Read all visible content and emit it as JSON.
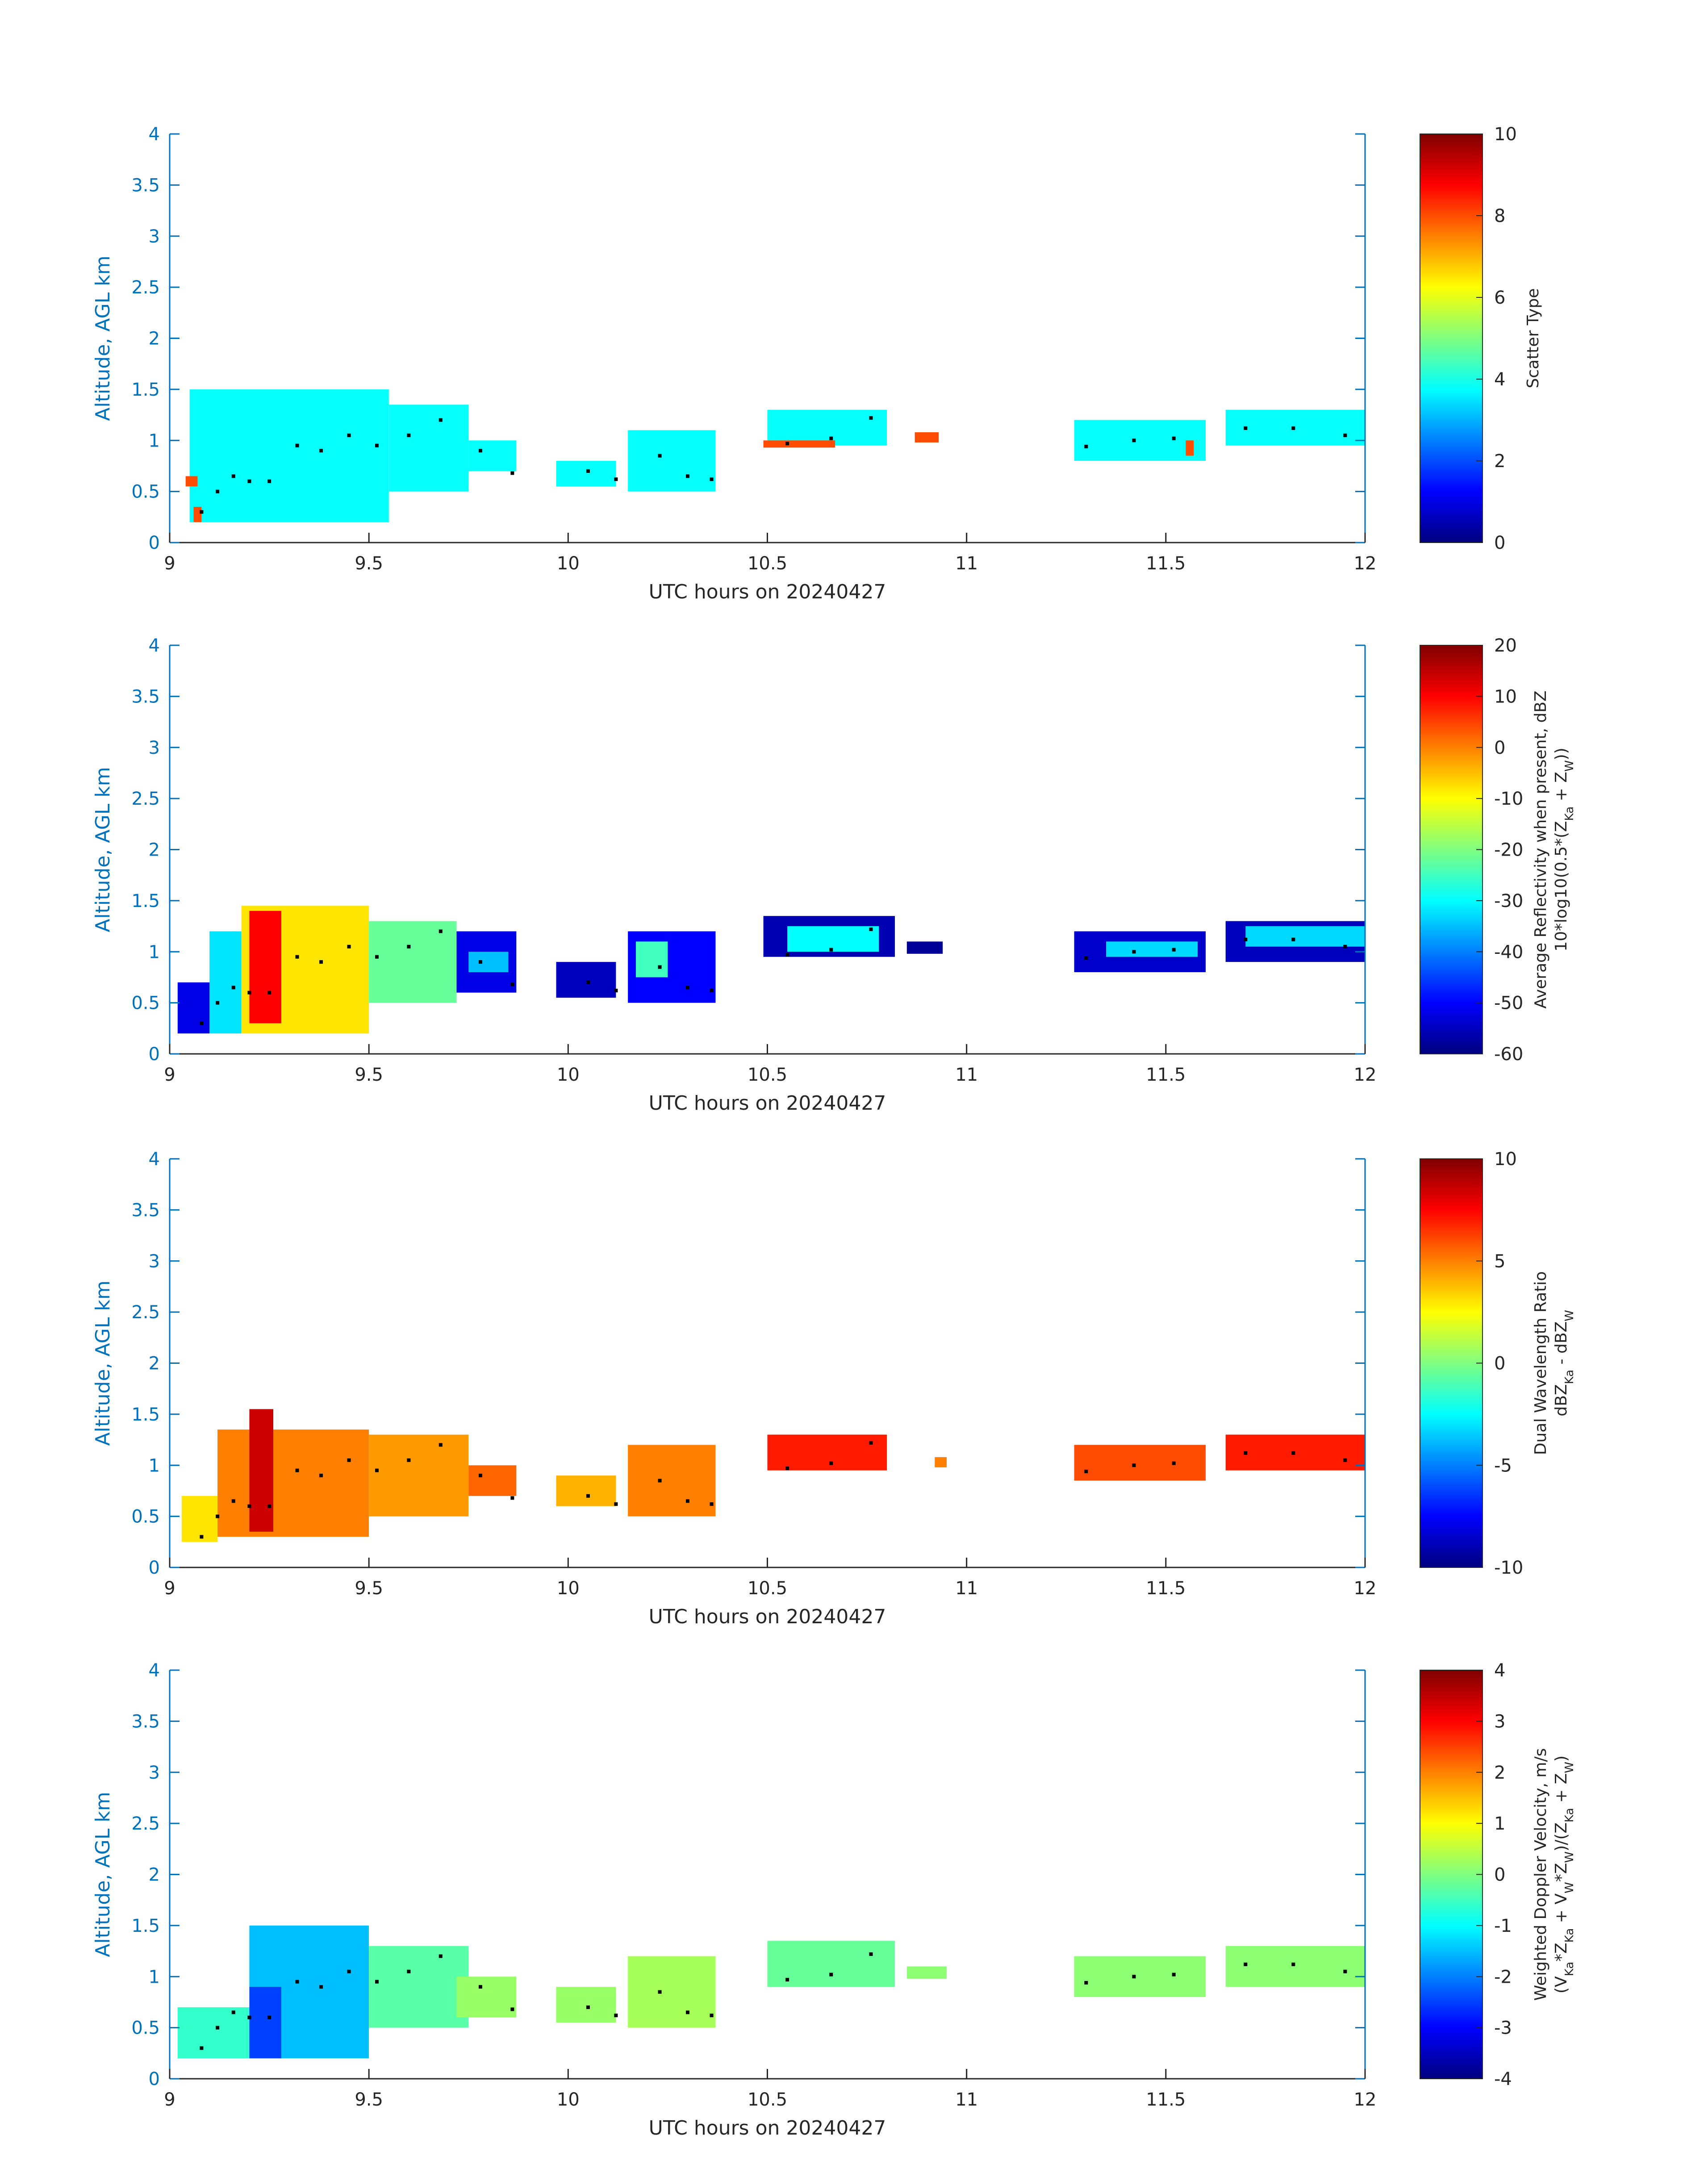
{
  "chart_data": [
    {
      "type": "heatmap",
      "title": "",
      "xlabel": "UTC hours on 20240427",
      "ylabel": "Altitude, AGL km",
      "xlim": [
        9,
        12
      ],
      "ylim": [
        0,
        4
      ],
      "xticks": [
        "9",
        "9.5",
        "10",
        "10.5",
        "11",
        "11.5",
        "12"
      ],
      "yticks": [
        "0",
        "0.5",
        "1",
        "1.5",
        "2",
        "2.5",
        "3",
        "3.5",
        "4"
      ],
      "colorbar": {
        "label_lines": [
          "Scatter Type"
        ],
        "range": [
          0,
          10
        ],
        "ticks": [
          "0",
          "2",
          "4",
          "6",
          "8",
          "10"
        ],
        "colormap": "jet"
      },
      "fields": [
        {
          "x0": 9.05,
          "x1": 9.55,
          "y0": 0.2,
          "y1": 1.5,
          "value": 3.8
        },
        {
          "x0": 9.55,
          "x1": 9.75,
          "y0": 0.5,
          "y1": 1.35,
          "value": 3.8
        },
        {
          "x0": 9.75,
          "x1": 9.87,
          "y0": 0.7,
          "y1": 1.0,
          "value": 3.8
        },
        {
          "x0": 9.97,
          "x1": 10.12,
          "y0": 0.55,
          "y1": 0.8,
          "value": 3.8
        },
        {
          "x0": 10.15,
          "x1": 10.37,
          "y0": 0.5,
          "y1": 1.1,
          "value": 3.8
        },
        {
          "x0": 10.5,
          "x1": 10.8,
          "y0": 0.95,
          "y1": 1.3,
          "value": 3.8
        },
        {
          "x0": 11.27,
          "x1": 11.6,
          "y0": 0.8,
          "y1": 1.2,
          "value": 3.8
        },
        {
          "x0": 11.65,
          "x1": 12.0,
          "y0": 0.95,
          "y1": 1.3,
          "value": 3.8
        },
        {
          "x0": 9.04,
          "x1": 9.07,
          "y0": 0.55,
          "y1": 0.65,
          "value": 8.0
        },
        {
          "x0": 9.06,
          "x1": 9.08,
          "y0": 0.2,
          "y1": 0.35,
          "value": 8.0
        },
        {
          "x0": 10.49,
          "x1": 10.67,
          "y0": 0.93,
          "y1": 1.0,
          "value": 8.0
        },
        {
          "x0": 10.87,
          "x1": 10.93,
          "y0": 0.98,
          "y1": 1.08,
          "value": 8.0
        },
        {
          "x0": 11.55,
          "x1": 11.57,
          "y0": 0.85,
          "y1": 1.0,
          "value": 8.0
        }
      ],
      "dots": [
        [
          9.08,
          0.3
        ],
        [
          9.12,
          0.5
        ],
        [
          9.16,
          0.65
        ],
        [
          9.2,
          0.6
        ],
        [
          9.25,
          0.6
        ],
        [
          9.32,
          0.95
        ],
        [
          9.38,
          0.9
        ],
        [
          9.45,
          1.05
        ],
        [
          9.52,
          0.95
        ],
        [
          9.6,
          1.05
        ],
        [
          9.68,
          1.2
        ],
        [
          9.78,
          0.9
        ],
        [
          9.86,
          0.68
        ],
        [
          10.05,
          0.7
        ],
        [
          10.12,
          0.62
        ],
        [
          10.23,
          0.85
        ],
        [
          10.3,
          0.65
        ],
        [
          10.36,
          0.62
        ],
        [
          10.55,
          0.97
        ],
        [
          10.66,
          1.02
        ],
        [
          10.76,
          1.22
        ],
        [
          11.3,
          0.94
        ],
        [
          11.42,
          1.0
        ],
        [
          11.52,
          1.02
        ],
        [
          11.7,
          1.12
        ],
        [
          11.82,
          1.12
        ],
        [
          11.95,
          1.05
        ]
      ]
    },
    {
      "type": "heatmap",
      "title": "",
      "xlabel": "UTC hours on 20240427",
      "ylabel": "Altitude, AGL km",
      "xlim": [
        9,
        12
      ],
      "ylim": [
        0,
        4
      ],
      "xticks": [
        "9",
        "9.5",
        "10",
        "10.5",
        "11",
        "11.5",
        "12"
      ],
      "yticks": [
        "0",
        "0.5",
        "1",
        "1.5",
        "2",
        "2.5",
        "3",
        "3.5",
        "4"
      ],
      "colorbar": {
        "label_lines": [
          "Average Reflectivity when present, dBZ",
          "10*log10(0.5*(Z<sub>Ka</sub> + Z<sub>W</sub>))"
        ],
        "range": [
          -60,
          20
        ],
        "ticks": [
          "-60",
          "-50",
          "-40",
          "-30",
          "-20",
          "-10",
          "0",
          "10",
          "20"
        ],
        "colormap": "jet"
      },
      "fields": [
        {
          "x0": 9.02,
          "x1": 9.1,
          "y0": 0.2,
          "y1": 0.7,
          "value": -52
        },
        {
          "x0": 9.1,
          "x1": 9.18,
          "y0": 0.2,
          "y1": 1.2,
          "value": -32
        },
        {
          "x0": 9.18,
          "x1": 9.5,
          "y0": 0.2,
          "y1": 1.45,
          "value": -8
        },
        {
          "x0": 9.2,
          "x1": 9.28,
          "y0": 0.3,
          "y1": 1.4,
          "value": 10
        },
        {
          "x0": 9.5,
          "x1": 9.72,
          "y0": 0.5,
          "y1": 1.3,
          "value": -22
        },
        {
          "x0": 9.72,
          "x1": 9.87,
          "y0": 0.6,
          "y1": 1.2,
          "value": -52
        },
        {
          "x0": 9.75,
          "x1": 9.85,
          "y0": 0.8,
          "y1": 1.0,
          "value": -35
        },
        {
          "x0": 9.97,
          "x1": 10.12,
          "y0": 0.55,
          "y1": 0.9,
          "value": -55
        },
        {
          "x0": 10.15,
          "x1": 10.37,
          "y0": 0.5,
          "y1": 1.2,
          "value": -50
        },
        {
          "x0": 10.17,
          "x1": 10.25,
          "y0": 0.75,
          "y1": 1.1,
          "value": -25
        },
        {
          "x0": 10.49,
          "x1": 10.82,
          "y0": 0.95,
          "y1": 1.35,
          "value": -56
        },
        {
          "x0": 10.55,
          "x1": 10.78,
          "y0": 1.0,
          "y1": 1.25,
          "value": -30
        },
        {
          "x0": 10.85,
          "x1": 10.94,
          "y0": 0.98,
          "y1": 1.1,
          "value": -58
        },
        {
          "x0": 11.27,
          "x1": 11.6,
          "y0": 0.8,
          "y1": 1.2,
          "value": -54
        },
        {
          "x0": 11.35,
          "x1": 11.58,
          "y0": 0.95,
          "y1": 1.1,
          "value": -33
        },
        {
          "x0": 11.65,
          "x1": 12.0,
          "y0": 0.9,
          "y1": 1.3,
          "value": -55
        },
        {
          "x0": 11.7,
          "x1": 12.0,
          "y0": 1.05,
          "y1": 1.25,
          "value": -33
        }
      ],
      "dots": [
        [
          9.08,
          0.3
        ],
        [
          9.12,
          0.5
        ],
        [
          9.16,
          0.65
        ],
        [
          9.2,
          0.6
        ],
        [
          9.25,
          0.6
        ],
        [
          9.32,
          0.95
        ],
        [
          9.38,
          0.9
        ],
        [
          9.45,
          1.05
        ],
        [
          9.52,
          0.95
        ],
        [
          9.6,
          1.05
        ],
        [
          9.68,
          1.2
        ],
        [
          9.78,
          0.9
        ],
        [
          9.86,
          0.68
        ],
        [
          10.05,
          0.7
        ],
        [
          10.12,
          0.62
        ],
        [
          10.23,
          0.85
        ],
        [
          10.3,
          0.65
        ],
        [
          10.36,
          0.62
        ],
        [
          10.55,
          0.97
        ],
        [
          10.66,
          1.02
        ],
        [
          10.76,
          1.22
        ],
        [
          11.3,
          0.94
        ],
        [
          11.42,
          1.0
        ],
        [
          11.52,
          1.02
        ],
        [
          11.7,
          1.12
        ],
        [
          11.82,
          1.12
        ],
        [
          11.95,
          1.05
        ]
      ]
    },
    {
      "type": "heatmap",
      "title": "",
      "xlabel": "UTC hours on 20240427",
      "ylabel": "Altitude, AGL km",
      "xlim": [
        9,
        12
      ],
      "ylim": [
        0,
        4
      ],
      "xticks": [
        "9",
        "9.5",
        "10",
        "10.5",
        "11",
        "11.5",
        "12"
      ],
      "yticks": [
        "0",
        "0.5",
        "1",
        "1.5",
        "2",
        "2.5",
        "3",
        "3.5",
        "4"
      ],
      "colorbar": {
        "label_lines": [
          "Dual Wavelength Ratio",
          "dBZ<sub>Ka</sub> - dBZ<sub>W</sub>"
        ],
        "range": [
          -10,
          10
        ],
        "ticks": [
          "-10",
          "-5",
          "0",
          "5",
          "10"
        ],
        "colormap": "jet"
      },
      "fields": [
        {
          "x0": 9.03,
          "x1": 9.12,
          "y0": 0.25,
          "y1": 0.7,
          "value": 3
        },
        {
          "x0": 9.12,
          "x1": 9.5,
          "y0": 0.3,
          "y1": 1.35,
          "value": 5
        },
        {
          "x0": 9.2,
          "x1": 9.26,
          "y0": 0.35,
          "y1": 1.55,
          "value": 8.5
        },
        {
          "x0": 9.5,
          "x1": 9.75,
          "y0": 0.5,
          "y1": 1.3,
          "value": 4.5
        },
        {
          "x0": 9.75,
          "x1": 9.87,
          "y0": 0.7,
          "y1": 1.0,
          "value": 5.5
        },
        {
          "x0": 9.97,
          "x1": 10.12,
          "y0": 0.6,
          "y1": 0.9,
          "value": 4
        },
        {
          "x0": 10.15,
          "x1": 10.37,
          "y0": 0.5,
          "y1": 1.2,
          "value": 5
        },
        {
          "x0": 10.5,
          "x1": 10.8,
          "y0": 0.95,
          "y1": 1.3,
          "value": 7
        },
        {
          "x0": 10.92,
          "x1": 10.95,
          "y0": 0.98,
          "y1": 1.08,
          "value": 5
        },
        {
          "x0": 11.27,
          "x1": 11.6,
          "y0": 0.85,
          "y1": 1.2,
          "value": 6
        },
        {
          "x0": 11.65,
          "x1": 12.0,
          "y0": 0.95,
          "y1": 1.3,
          "value": 7
        }
      ],
      "dots": [
        [
          9.08,
          0.3
        ],
        [
          9.12,
          0.5
        ],
        [
          9.16,
          0.65
        ],
        [
          9.2,
          0.6
        ],
        [
          9.25,
          0.6
        ],
        [
          9.32,
          0.95
        ],
        [
          9.38,
          0.9
        ],
        [
          9.45,
          1.05
        ],
        [
          9.52,
          0.95
        ],
        [
          9.6,
          1.05
        ],
        [
          9.68,
          1.2
        ],
        [
          9.78,
          0.9
        ],
        [
          9.86,
          0.68
        ],
        [
          10.05,
          0.7
        ],
        [
          10.12,
          0.62
        ],
        [
          10.23,
          0.85
        ],
        [
          10.3,
          0.65
        ],
        [
          10.36,
          0.62
        ],
        [
          10.55,
          0.97
        ],
        [
          10.66,
          1.02
        ],
        [
          10.76,
          1.22
        ],
        [
          11.3,
          0.94
        ],
        [
          11.42,
          1.0
        ],
        [
          11.52,
          1.02
        ],
        [
          11.7,
          1.12
        ],
        [
          11.82,
          1.12
        ],
        [
          11.95,
          1.05
        ]
      ]
    },
    {
      "type": "heatmap",
      "title": "",
      "xlabel": "UTC hours on 20240427",
      "ylabel": "Altitude, AGL km",
      "xlim": [
        9,
        12
      ],
      "ylim": [
        0,
        4
      ],
      "xticks": [
        "9",
        "9.5",
        "10",
        "10.5",
        "11",
        "11.5",
        "12"
      ],
      "yticks": [
        "0",
        "0.5",
        "1",
        "1.5",
        "2",
        "2.5",
        "3",
        "3.5",
        "4"
      ],
      "colorbar": {
        "label_lines": [
          "Weighted Doppler Velocity, m/s",
          "(V<sub>Ka</sub>*Z<sub>Ka</sub> + V<sub>W</sub>*Z<sub>W</sub>)/(Z<sub>Ka</sub> + Z<sub>W</sub>)"
        ],
        "range": [
          -4,
          4
        ],
        "ticks": [
          "-4",
          "-3",
          "-2",
          "-1",
          "0",
          "1",
          "2",
          "3",
          "4"
        ],
        "colormap": "jet"
      },
      "fields": [
        {
          "x0": 9.02,
          "x1": 9.2,
          "y0": 0.2,
          "y1": 0.7,
          "value": -0.6
        },
        {
          "x0": 9.2,
          "x1": 9.5,
          "y0": 0.2,
          "y1": 1.5,
          "value": -1.5
        },
        {
          "x0": 9.2,
          "x1": 9.28,
          "y0": 0.2,
          "y1": 0.9,
          "value": -2.5
        },
        {
          "x0": 9.5,
          "x1": 9.75,
          "y0": 0.5,
          "y1": 1.3,
          "value": -0.3
        },
        {
          "x0": 9.72,
          "x1": 9.87,
          "y0": 0.6,
          "y1": 1.0,
          "value": 0.2
        },
        {
          "x0": 9.97,
          "x1": 10.12,
          "y0": 0.55,
          "y1": 0.9,
          "value": 0.2
        },
        {
          "x0": 10.15,
          "x1": 10.37,
          "y0": 0.5,
          "y1": 1.2,
          "value": 0.3
        },
        {
          "x0": 10.5,
          "x1": 10.82,
          "y0": 0.9,
          "y1": 1.35,
          "value": -0.2
        },
        {
          "x0": 10.85,
          "x1": 10.95,
          "y0": 0.98,
          "y1": 1.1,
          "value": 0.1
        },
        {
          "x0": 11.27,
          "x1": 11.6,
          "y0": 0.8,
          "y1": 1.2,
          "value": 0.1
        },
        {
          "x0": 11.65,
          "x1": 12.0,
          "y0": 0.9,
          "y1": 1.3,
          "value": 0.1
        }
      ],
      "dots": [
        [
          9.08,
          0.3
        ],
        [
          9.12,
          0.5
        ],
        [
          9.16,
          0.65
        ],
        [
          9.2,
          0.6
        ],
        [
          9.25,
          0.6
        ],
        [
          9.32,
          0.95
        ],
        [
          9.38,
          0.9
        ],
        [
          9.45,
          1.05
        ],
        [
          9.52,
          0.95
        ],
        [
          9.6,
          1.05
        ],
        [
          9.68,
          1.2
        ],
        [
          9.78,
          0.9
        ],
        [
          9.86,
          0.68
        ],
        [
          10.05,
          0.7
        ],
        [
          10.12,
          0.62
        ],
        [
          10.23,
          0.85
        ],
        [
          10.3,
          0.65
        ],
        [
          10.36,
          0.62
        ],
        [
          10.55,
          0.97
        ],
        [
          10.66,
          1.02
        ],
        [
          10.76,
          1.22
        ],
        [
          11.3,
          0.94
        ],
        [
          11.42,
          1.0
        ],
        [
          11.52,
          1.02
        ],
        [
          11.7,
          1.12
        ],
        [
          11.82,
          1.12
        ],
        [
          11.95,
          1.05
        ]
      ]
    }
  ]
}
